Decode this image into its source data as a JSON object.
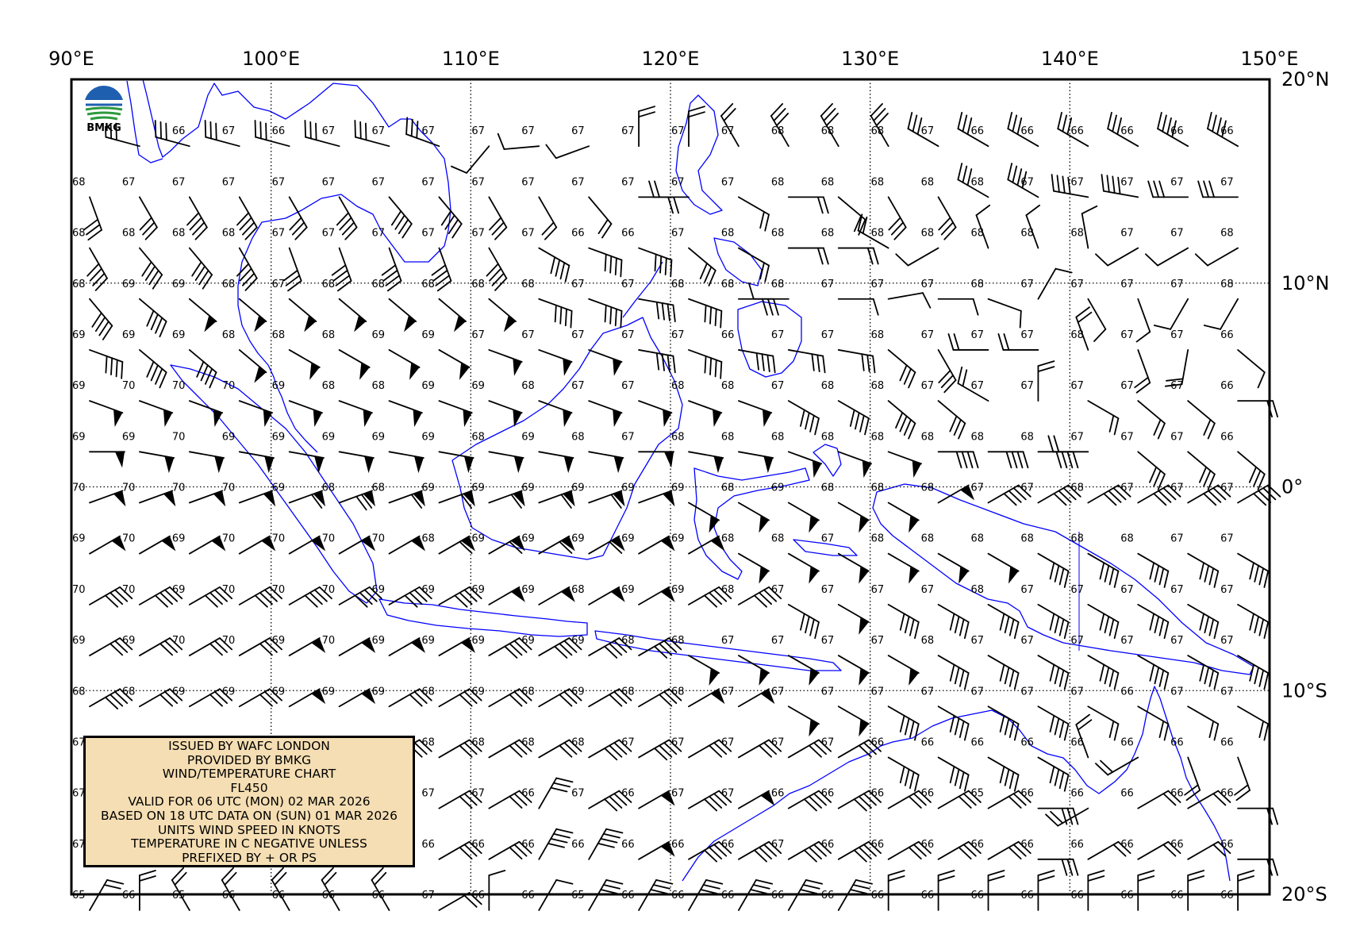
{
  "logo": {
    "text": "BMKG"
  },
  "axes": {
    "lon_labels": [
      "90°E",
      "100°E",
      "110°E",
      "120°E",
      "130°E",
      "140°E",
      "150°E"
    ],
    "lat_labels": [
      "20°N",
      "10°N",
      "0°",
      "10°S",
      "20°S"
    ]
  },
  "info_box": {
    "lines": [
      "ISSUED BY WAFC LONDON",
      "PROVIDED BY BMKG",
      "WIND/TEMPERATURE CHART",
      "FL450",
      "VALID FOR 06 UTC (MON) 02 MAR 2026",
      "BASED ON 18 UTC DATA ON (SUN) 01 MAR 2026",
      "UNITS WIND SPEED IN KNOTS",
      "TEMPERATURE IN C NEGATIVE UNLESS",
      "PREFIXED BY + OR PS"
    ]
  },
  "colors": {
    "coastline": "#0000ff",
    "frame": "#000000",
    "info_bg": "#f5deb3"
  },
  "chart_data": {
    "type": "map",
    "lon_range": [
      90,
      150
    ],
    "lat_range": [
      -20,
      20
    ],
    "grid_step_deg": 2.5,
    "graticule_step_deg": 10,
    "lat_rows": [
      17.5,
      15,
      12.5,
      10,
      7.5,
      5,
      2.5,
      0,
      -2.5,
      -5,
      -7.5,
      -10,
      -12.5,
      -15,
      -17.5,
      -20
    ],
    "lon_cols": [
      90,
      92.5,
      95,
      97.5,
      100,
      102.5,
      105,
      107.5,
      110,
      112.5,
      115,
      117.5,
      120,
      122.5,
      125,
      127.5,
      130,
      132.5,
      135,
      137.5,
      140,
      142.5,
      145,
      147.5
    ],
    "temperatures": [
      [
        "",
        "",
        "66",
        "67",
        "66",
        "67",
        "67",
        "67",
        "67",
        "67",
        "67",
        "67",
        "67",
        "67",
        "68",
        "68",
        "68",
        "67",
        "66",
        "66",
        "66",
        "66",
        "66",
        "66"
      ],
      [
        "68",
        "67",
        "67",
        "67",
        "67",
        "67",
        "67",
        "67",
        "67",
        "67",
        "67",
        "67",
        "67",
        "67",
        "68",
        "68",
        "68",
        "68",
        "68",
        "67",
        "67",
        "67",
        "67",
        "67"
      ],
      [
        "68",
        "68",
        "68",
        "68",
        "67",
        "67",
        "67",
        "67",
        "67",
        "67",
        "66",
        "66",
        "67",
        "68",
        "68",
        "68",
        "68",
        "68",
        "68",
        "68",
        "68",
        "67",
        "67",
        "68"
      ],
      [
        "68",
        "69",
        "69",
        "68",
        "67",
        "68",
        "68",
        "68",
        "68",
        "68",
        "67",
        "67",
        "68",
        "68",
        "68",
        "67",
        "67",
        "67",
        "68",
        "67",
        "67",
        "67",
        "67",
        "68"
      ],
      [
        "69",
        "69",
        "69",
        "68",
        "68",
        "68",
        "69",
        "69",
        "67",
        "67",
        "67",
        "67",
        "67",
        "66",
        "67",
        "67",
        "68",
        "67",
        "67",
        "67",
        "68",
        "67",
        "67",
        "66"
      ],
      [
        "69",
        "70",
        "70",
        "70",
        "69",
        "68",
        "68",
        "69",
        "69",
        "68",
        "67",
        "67",
        "68",
        "68",
        "67",
        "68",
        "68",
        "67",
        "67",
        "67",
        "67",
        "67",
        "67",
        "66"
      ],
      [
        "69",
        "69",
        "70",
        "69",
        "69",
        "69",
        "69",
        "69",
        "68",
        "69",
        "68",
        "67",
        "68",
        "68",
        "68",
        "68",
        "68",
        "68",
        "68",
        "68",
        "67",
        "67",
        "67",
        "66"
      ],
      [
        "70",
        "70",
        "70",
        "70",
        "69",
        "68",
        "68",
        "69",
        "69",
        "69",
        "69",
        "69",
        "69",
        "68",
        "69",
        "68",
        "68",
        "68",
        "67",
        "67",
        "68",
        "67",
        "67",
        "67"
      ],
      [
        "69",
        "70",
        "69",
        "70",
        "70",
        "70",
        "70",
        "68",
        "69",
        "69",
        "69",
        "69",
        "69",
        "68",
        "68",
        "67",
        "68",
        "68",
        "68",
        "68",
        "68",
        "68",
        "67",
        "67"
      ],
      [
        "70",
        "70",
        "69",
        "70",
        "70",
        "70",
        "69",
        "69",
        "69",
        "69",
        "68",
        "69",
        "69",
        "68",
        "67",
        "67",
        "67",
        "67",
        "68",
        "67",
        "67",
        "67",
        "67",
        "67"
      ],
      [
        "69",
        "69",
        "70",
        "70",
        "69",
        "70",
        "69",
        "69",
        "69",
        "69",
        "69",
        "68",
        "68",
        "67",
        "67",
        "67",
        "67",
        "68",
        "67",
        "67",
        "67",
        "67",
        "67",
        "67"
      ],
      [
        "68",
        "68",
        "69",
        "69",
        "69",
        "69",
        "69",
        "68",
        "69",
        "68",
        "69",
        "68",
        "68",
        "67",
        "67",
        "67",
        "67",
        "67",
        "67",
        "67",
        "67",
        "66",
        "67",
        "67"
      ],
      [
        "67",
        "67",
        "68",
        "68",
        "68",
        "68",
        "68",
        "68",
        "68",
        "68",
        "68",
        "67",
        "67",
        "67",
        "67",
        "67",
        "66",
        "66",
        "66",
        "66",
        "66",
        "66",
        "66",
        "66"
      ],
      [
        "67",
        "",
        "",
        "",
        "",
        "",
        "",
        "67",
        "67",
        "66",
        "67",
        "66",
        "67",
        "67",
        "66",
        "66",
        "66",
        "66",
        "65",
        "66",
        "66",
        "66",
        "66",
        "66"
      ],
      [
        "67",
        "",
        "",
        "",
        "",
        "",
        "",
        "66",
        "66",
        "66",
        "66",
        "66",
        "66",
        "66",
        "67",
        "66",
        "66",
        "66",
        "66",
        "66",
        "66",
        "66",
        "66",
        "66"
      ],
      [
        "65",
        "66",
        "65",
        "66",
        "66",
        "66",
        "66",
        "67",
        "66",
        "66",
        "65",
        "66",
        "66",
        "66",
        "66",
        "66",
        "66",
        "66",
        "66",
        "66",
        "66",
        "66",
        "66",
        "66"
      ]
    ],
    "wind_direction_deg": [
      [
        -1,
        285,
        285,
        285,
        285,
        285,
        285,
        290,
        220,
        265,
        250,
        0,
        0,
        330,
        330,
        330,
        330,
        300,
        300,
        300,
        300,
        300,
        300,
        300
      ],
      [
        160,
        150,
        150,
        150,
        150,
        150,
        140,
        140,
        150,
        150,
        140,
        90,
        270,
        120,
        90,
        130,
        150,
        150,
        300,
        300,
        280,
        280,
        270,
        270
      ],
      [
        150,
        140,
        140,
        150,
        160,
        160,
        160,
        160,
        150,
        120,
        110,
        110,
        130,
        120,
        90,
        90,
        300,
        240,
        340,
        340,
        350,
        240,
        240,
        240
      ],
      [
        140,
        130,
        130,
        130,
        130,
        130,
        130,
        130,
        130,
        110,
        110,
        100,
        110,
        90,
        270,
        90,
        80,
        90,
        110,
        30,
        150,
        160,
        210,
        210
      ],
      [
        110,
        130,
        130,
        130,
        120,
        120,
        120,
        120,
        110,
        110,
        110,
        100,
        110,
        100,
        100,
        100,
        130,
        150,
        270,
        270,
        340,
        160,
        190,
        130
      ],
      [
        110,
        110,
        110,
        110,
        110,
        110,
        110,
        110,
        110,
        110,
        110,
        110,
        110,
        110,
        120,
        120,
        130,
        130,
        300,
        0,
        120,
        130,
        130,
        90
      ],
      [
        90,
        100,
        100,
        100,
        100,
        100,
        100,
        100,
        100,
        100,
        100,
        90,
        100,
        100,
        110,
        110,
        110,
        90,
        90,
        90,
        270,
        130,
        130,
        130
      ],
      [
        70,
        70,
        70,
        70,
        70,
        70,
        70,
        70,
        70,
        70,
        70,
        70,
        120,
        120,
        120,
        120,
        120,
        60,
        60,
        60,
        60,
        60,
        60,
        60
      ],
      [
        60,
        60,
        60,
        60,
        60,
        60,
        60,
        60,
        60,
        60,
        60,
        60,
        60,
        120,
        120,
        120,
        120,
        120,
        120,
        120,
        120,
        120,
        120,
        120
      ],
      [
        60,
        60,
        60,
        60,
        60,
        60,
        60,
        60,
        60,
        60,
        60,
        60,
        60,
        60,
        120,
        120,
        120,
        120,
        120,
        120,
        120,
        120,
        120,
        120
      ],
      [
        60,
        60,
        60,
        60,
        60,
        60,
        60,
        60,
        60,
        60,
        60,
        60,
        120,
        120,
        120,
        120,
        120,
        120,
        120,
        120,
        120,
        120,
        120,
        120
      ],
      [
        60,
        60,
        60,
        60,
        60,
        60,
        60,
        60,
        60,
        60,
        60,
        60,
        60,
        60,
        120,
        120,
        120,
        120,
        120,
        120,
        120,
        120,
        120,
        120
      ],
      [
        60,
        60,
        60,
        60,
        60,
        60,
        60,
        60,
        60,
        60,
        60,
        60,
        60,
        60,
        60,
        60,
        120,
        120,
        120,
        120,
        340,
        240,
        160,
        160
      ],
      [
        -1,
        -1,
        -1,
        -1,
        -1,
        -1,
        -1,
        60,
        60,
        30,
        60,
        60,
        60,
        60,
        60,
        60,
        60,
        60,
        60,
        90,
        240,
        60,
        60,
        90
      ],
      [
        -1,
        -1,
        -1,
        -1,
        -1,
        -1,
        -1,
        60,
        60,
        30,
        30,
        60,
        60,
        60,
        60,
        60,
        60,
        60,
        60,
        90,
        60,
        60,
        60,
        90
      ],
      [
        30,
        0,
        330,
        330,
        330,
        330,
        330,
        60,
        0,
        30,
        30,
        30,
        30,
        30,
        30,
        30,
        0,
        0,
        0,
        0,
        0,
        0,
        0,
        0
      ]
    ],
    "wind_speed_kt": [
      [
        0,
        30,
        30,
        30,
        30,
        30,
        30,
        30,
        10,
        10,
        10,
        20,
        20,
        20,
        30,
        30,
        30,
        30,
        30,
        30,
        30,
        30,
        40,
        40
      ],
      [
        30,
        30,
        40,
        40,
        30,
        40,
        40,
        40,
        30,
        20,
        20,
        20,
        20,
        20,
        20,
        20,
        30,
        30,
        30,
        40,
        40,
        40,
        30,
        30
      ],
      [
        40,
        40,
        40,
        40,
        30,
        40,
        40,
        40,
        40,
        40,
        40,
        40,
        30,
        20,
        20,
        20,
        20,
        10,
        10,
        10,
        10,
        10,
        10,
        10
      ],
      [
        40,
        40,
        50,
        50,
        50,
        50,
        50,
        50,
        50,
        40,
        40,
        40,
        40,
        30,
        10,
        10,
        10,
        10,
        10,
        10,
        10,
        10,
        10,
        10
      ],
      [
        40,
        40,
        40,
        50,
        50,
        50,
        50,
        50,
        50,
        50,
        50,
        40,
        40,
        40,
        30,
        30,
        30,
        30,
        20,
        20,
        20,
        20,
        20,
        10
      ],
      [
        50,
        50,
        50,
        50,
        50,
        50,
        50,
        50,
        50,
        50,
        50,
        50,
        50,
        50,
        40,
        40,
        40,
        30,
        20,
        20,
        20,
        20,
        20,
        20
      ],
      [
        50,
        50,
        50,
        50,
        50,
        50,
        50,
        50,
        50,
        50,
        50,
        50,
        50,
        50,
        50,
        50,
        50,
        40,
        40,
        40,
        20,
        30,
        30,
        30
      ],
      [
        50,
        50,
        50,
        50,
        60,
        70,
        60,
        60,
        60,
        60,
        60,
        50,
        50,
        50,
        50,
        50,
        50,
        50,
        40,
        40,
        40,
        40,
        40,
        40
      ],
      [
        50,
        50,
        50,
        50,
        50,
        50,
        50,
        60,
        60,
        60,
        60,
        50,
        50,
        50,
        50,
        50,
        50,
        50,
        50,
        40,
        40,
        40,
        40,
        40
      ],
      [
        40,
        40,
        40,
        40,
        40,
        40,
        40,
        40,
        50,
        50,
        50,
        50,
        40,
        40,
        40,
        50,
        40,
        40,
        40,
        40,
        40,
        40,
        40,
        40
      ],
      [
        30,
        30,
        30,
        30,
        50,
        50,
        50,
        50,
        40,
        40,
        40,
        40,
        50,
        50,
        50,
        50,
        50,
        40,
        40,
        40,
        40,
        40,
        40,
        40
      ],
      [
        40,
        30,
        30,
        30,
        50,
        50,
        30,
        30,
        30,
        30,
        30,
        30,
        50,
        50,
        50,
        50,
        40,
        40,
        40,
        40,
        20,
        20,
        20,
        20
      ],
      [
        30,
        30,
        30,
        30,
        30,
        30,
        30,
        30,
        30,
        30,
        40,
        40,
        30,
        30,
        30,
        30,
        40,
        40,
        40,
        40,
        20,
        20,
        20,
        20
      ],
      [
        0,
        0,
        0,
        0,
        0,
        0,
        0,
        30,
        30,
        30,
        40,
        50,
        40,
        50,
        40,
        40,
        30,
        30,
        30,
        30,
        20,
        20,
        20,
        20
      ],
      [
        0,
        0,
        0,
        0,
        0,
        0,
        0,
        30,
        30,
        40,
        40,
        50,
        40,
        40,
        40,
        40,
        30,
        30,
        30,
        30,
        20,
        20,
        20,
        20
      ],
      [
        20,
        20,
        20,
        20,
        20,
        20,
        20,
        20,
        10,
        10,
        30,
        30,
        30,
        30,
        30,
        30,
        20,
        20,
        20,
        20,
        20,
        20,
        20,
        20
      ]
    ]
  }
}
